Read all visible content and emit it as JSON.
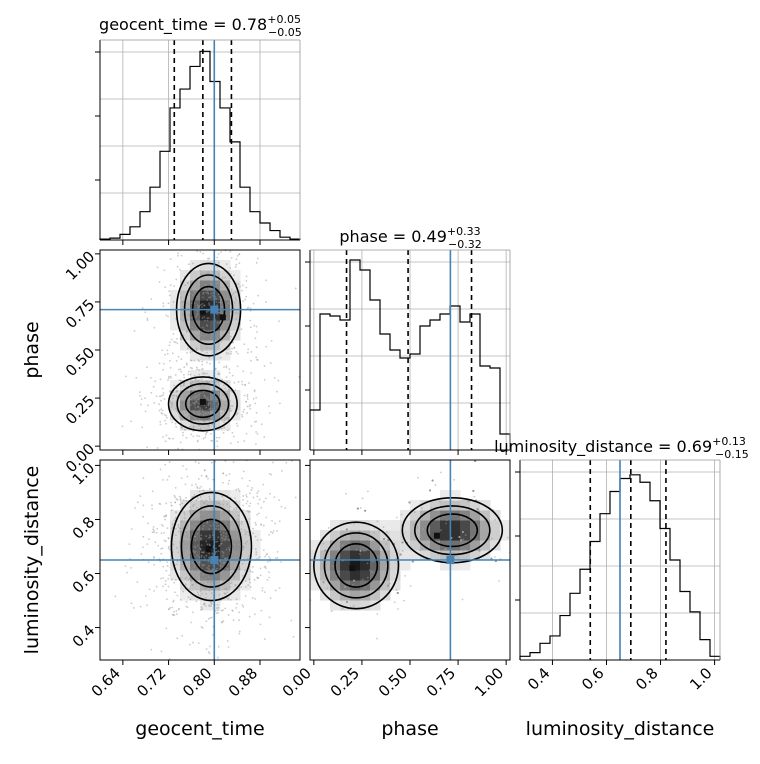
{
  "chart_data": {
    "type": "corner",
    "parameters": [
      "geocent_time",
      "phase",
      "luminosity_distance"
    ],
    "truths": {
      "geocent_time": 0.8,
      "phase": 0.71,
      "luminosity_distance": 0.65
    },
    "grid": true,
    "titles": [
      {
        "param": "geocent_time",
        "label": "geocent_time = 0.78",
        "plus": "+0.05",
        "minus": "−0.05"
      },
      {
        "param": "phase",
        "label": "phase = 0.49",
        "plus": "+0.33",
        "minus": "−0.32"
      },
      {
        "param": "luminosity_distance",
        "label": "luminosity_distance = 0.69",
        "plus": "+0.13",
        "minus": "−0.15"
      }
    ],
    "axes": {
      "geocent_time": {
        "label": "geocent_time",
        "range": [
          0.6,
          0.95
        ],
        "ticks": [
          0.64,
          0.72,
          0.8,
          0.88
        ],
        "tick_labels": [
          "0.64",
          "0.72",
          "0.80",
          "0.88"
        ]
      },
      "phase": {
        "label": "phase",
        "range": [
          -0.02,
          1.02
        ],
        "ticks": [
          0.0,
          0.25,
          0.5,
          0.75,
          1.0
        ],
        "tick_labels": [
          "0.00",
          "0.25",
          "0.50",
          "0.75",
          "1.00"
        ]
      },
      "luminosity_distance": {
        "label": "luminosity_distance",
        "range": [
          0.28,
          1.02
        ],
        "ticks": [
          0.4,
          0.6,
          0.8,
          1.0
        ],
        "tick_labels": [
          "0.4",
          "0.6",
          "0.8",
          "1.0"
        ]
      }
    },
    "histograms": {
      "geocent_time": {
        "quantiles": [
          0.73,
          0.78,
          0.83
        ],
        "bin_edges": [
          0.6,
          0.6175,
          0.635,
          0.6525,
          0.67,
          0.6875,
          0.705,
          0.7225,
          0.74,
          0.7575,
          0.775,
          0.7925,
          0.81,
          0.8275,
          0.845,
          0.8625,
          0.88,
          0.8975,
          0.915,
          0.9325,
          0.95
        ],
        "counts": [
          0.005,
          0.01,
          0.03,
          0.07,
          0.15,
          0.28,
          0.47,
          0.7,
          0.8,
          0.92,
          1.0,
          0.84,
          0.7,
          0.52,
          0.28,
          0.15,
          0.09,
          0.05,
          0.015,
          0.005
        ],
        "ylim": [
          0,
          1.06
        ]
      },
      "phase": {
        "quantiles": [
          0.17,
          0.49,
          0.82
        ],
        "bin_edges": [
          -0.02,
          0.032,
          0.084,
          0.136,
          0.188,
          0.24,
          0.292,
          0.344,
          0.396,
          0.448,
          0.5,
          0.552,
          0.604,
          0.656,
          0.708,
          0.76,
          0.812,
          0.864,
          0.916,
          0.968,
          1.02
        ],
        "counts": [
          0.2,
          0.68,
          0.67,
          0.65,
          0.95,
          0.9,
          0.75,
          0.58,
          0.5,
          0.46,
          0.48,
          0.62,
          0.65,
          0.68,
          0.72,
          0.64,
          0.68,
          0.42,
          0.41,
          0.08
        ],
        "ylim": [
          0,
          1.0
        ]
      },
      "luminosity_distance": {
        "quantiles": [
          0.54,
          0.69,
          0.82
        ],
        "bin_edges": [
          0.28,
          0.317,
          0.354,
          0.391,
          0.428,
          0.465,
          0.502,
          0.539,
          0.576,
          0.613,
          0.65,
          0.687,
          0.724,
          0.761,
          0.798,
          0.835,
          0.872,
          0.909,
          0.946,
          0.983,
          1.02
        ],
        "counts": [
          0.02,
          0.04,
          0.09,
          0.13,
          0.24,
          0.36,
          0.49,
          0.64,
          0.79,
          0.91,
          0.98,
          1.0,
          0.96,
          0.86,
          0.71,
          0.54,
          0.37,
          0.26,
          0.11,
          0.02
        ],
        "ylim": [
          0,
          1.08
        ]
      }
    },
    "density_panels": [
      {
        "x": "geocent_time",
        "y": "phase",
        "modes": [
          {
            "x": 0.79,
            "y": 0.71,
            "sx": 0.028,
            "sy": 0.12,
            "w": 1.0
          },
          {
            "x": 0.78,
            "y": 0.22,
            "sx": 0.03,
            "sy": 0.07,
            "w": 0.85
          }
        ],
        "points": [
          [
            0.78,
            0.7
          ],
          [
            0.815,
            0.67
          ],
          [
            0.78,
            0.23
          ]
        ]
      },
      {
        "x": "phase",
        "y": "geocent_time",
        "modes": [],
        "points": []
      },
      {
        "x": "geocent_time",
        "y": "luminosity_distance",
        "modes": [
          {
            "x": 0.795,
            "y": 0.7,
            "sx": 0.035,
            "sy": 0.1,
            "w": 1.0
          }
        ],
        "points": [
          [
            0.79,
            0.69
          ]
        ]
      },
      {
        "x": "phase",
        "y": "luminosity_distance",
        "modes": [
          {
            "x": 0.22,
            "y": 0.63,
            "sx": 0.11,
            "sy": 0.08,
            "w": 1.0
          },
          {
            "x": 0.72,
            "y": 0.76,
            "sx": 0.13,
            "sy": 0.06,
            "w": 0.95
          }
        ],
        "points": [
          [
            0.2,
            0.62
          ],
          [
            0.64,
            0.74
          ]
        ]
      }
    ]
  }
}
